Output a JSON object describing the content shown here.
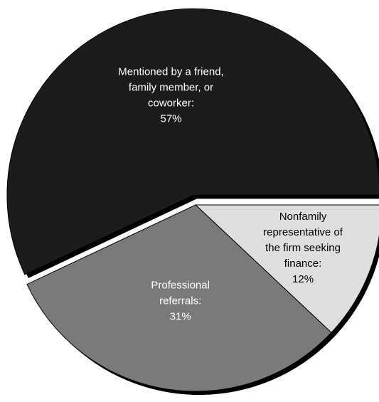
{
  "chart_data": {
    "type": "pie",
    "slices": [
      {
        "label_lines": [
          "Mentioned by a friend,",
          "family member, or",
          "coworker:",
          "57%"
        ],
        "value": 57,
        "color": "#1c1c1c",
        "exploded": true
      },
      {
        "label_lines": [
          "Nonfamily",
          "representative of",
          "the firm seeking",
          "finance:",
          "12%"
        ],
        "value": 12,
        "color": "#dedede",
        "exploded": false
      },
      {
        "label_lines": [
          "Professional",
          "referrals:",
          "31%"
        ],
        "value": 31,
        "color": "#7a7a7a",
        "exploded": false
      }
    ]
  }
}
